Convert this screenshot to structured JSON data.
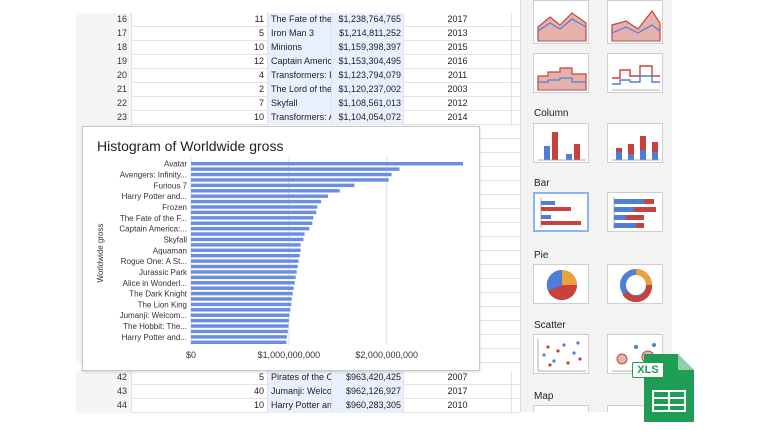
{
  "sheet": {
    "rows_top": [
      {
        "row": "16",
        "rank": "11",
        "title": "The Fate of the F",
        "gross": "$1,238,764,765",
        "year": "2017"
      },
      {
        "row": "17",
        "rank": "5",
        "title": "Iron Man 3",
        "gross": "$1,214,811,252",
        "year": "2013"
      },
      {
        "row": "18",
        "rank": "10",
        "title": "Minions",
        "gross": "$1,159,398,397",
        "year": "2015"
      },
      {
        "row": "19",
        "rank": "12",
        "title": "Captain America",
        "gross": "$1,153,304,495",
        "year": "2016"
      },
      {
        "row": "20",
        "rank": "4",
        "title": "Transformers: Da",
        "gross": "$1,123,794,079",
        "year": "2011"
      },
      {
        "row": "21",
        "rank": "2",
        "title": "The Lord of the F",
        "gross": "$1,120,237,002",
        "year": "2003"
      },
      {
        "row": "22",
        "rank": "7",
        "title": "Skyfall",
        "gross": "$1,108,561,013",
        "year": "2012"
      },
      {
        "row": "23",
        "rank": "10",
        "title": "Transformers: Ag",
        "gross": "$1,104,054,072",
        "year": "2014"
      }
    ],
    "rows_bottom": [
      {
        "row": "42",
        "rank": "5",
        "title": "Pirates of the Ca",
        "gross": "$963,420,425",
        "year": "2007"
      },
      {
        "row": "43",
        "rank": "40",
        "title": "Jumanji: Welcom",
        "gross": "$962,126,927",
        "year": "2017"
      },
      {
        "row": "44",
        "rank": "10",
        "title": "Harry Potter and",
        "gross": "$960,283,305",
        "year": "2010"
      }
    ]
  },
  "chart_data": {
    "type": "bar",
    "orientation": "horizontal",
    "title": "Histogram of Worldwide gross",
    "xlabel": "",
    "ylabel": "Worldwide gross",
    "xlim": [
      0,
      2800000000
    ],
    "xticks": [
      {
        "value": 0,
        "label": "$0"
      },
      {
        "value": 1000000000,
        "label": "$1,000,000,000"
      },
      {
        "value": 2000000000,
        "label": "$2,000,000,000"
      }
    ],
    "grid": true,
    "color": "#6c8ee0",
    "category_labels": [
      "Avatar",
      "Avengers: Infinity...",
      "Furious 7",
      "Harry Potter and...",
      "Frozen",
      "The Fate of the F...",
      "Captain America:...",
      "Skyfall",
      "Aquaman",
      "Rogue One: A St...",
      "Jurassic Park",
      "Alice in Wonderl...",
      "The Dark Knight",
      "The Lion King",
      "Jumanji: Welcom...",
      "The Hobbit: The...",
      "Harry Potter and..."
    ],
    "label_every": 2,
    "values": [
      2780000000,
      2130000000,
      2050000000,
      2020000000,
      1670000000,
      1520000000,
      1400000000,
      1330000000,
      1290000000,
      1280000000,
      1250000000,
      1240000000,
      1210000000,
      1160000000,
      1150000000,
      1120000000,
      1120000000,
      1110000000,
      1100000000,
      1090000000,
      1080000000,
      1070000000,
      1060000000,
      1050000000,
      1040000000,
      1030000000,
      1025000000,
      1015000000,
      1005000000,
      1000000000,
      995000000,
      990000000,
      980000000,
      975000000
    ]
  },
  "panel": {
    "sections": [
      {
        "label": "Column"
      },
      {
        "label": "Bar"
      },
      {
        "label": "Pie"
      },
      {
        "label": "Scatter"
      },
      {
        "label": "Map"
      }
    ],
    "colors": {
      "blue": "#4e7fd8",
      "red": "#c8413c",
      "fill_blue": "#b7c8ee",
      "fill_red": "#e6b0ad"
    }
  },
  "logo": {
    "text": "XLS",
    "color": "#1f9d55"
  }
}
